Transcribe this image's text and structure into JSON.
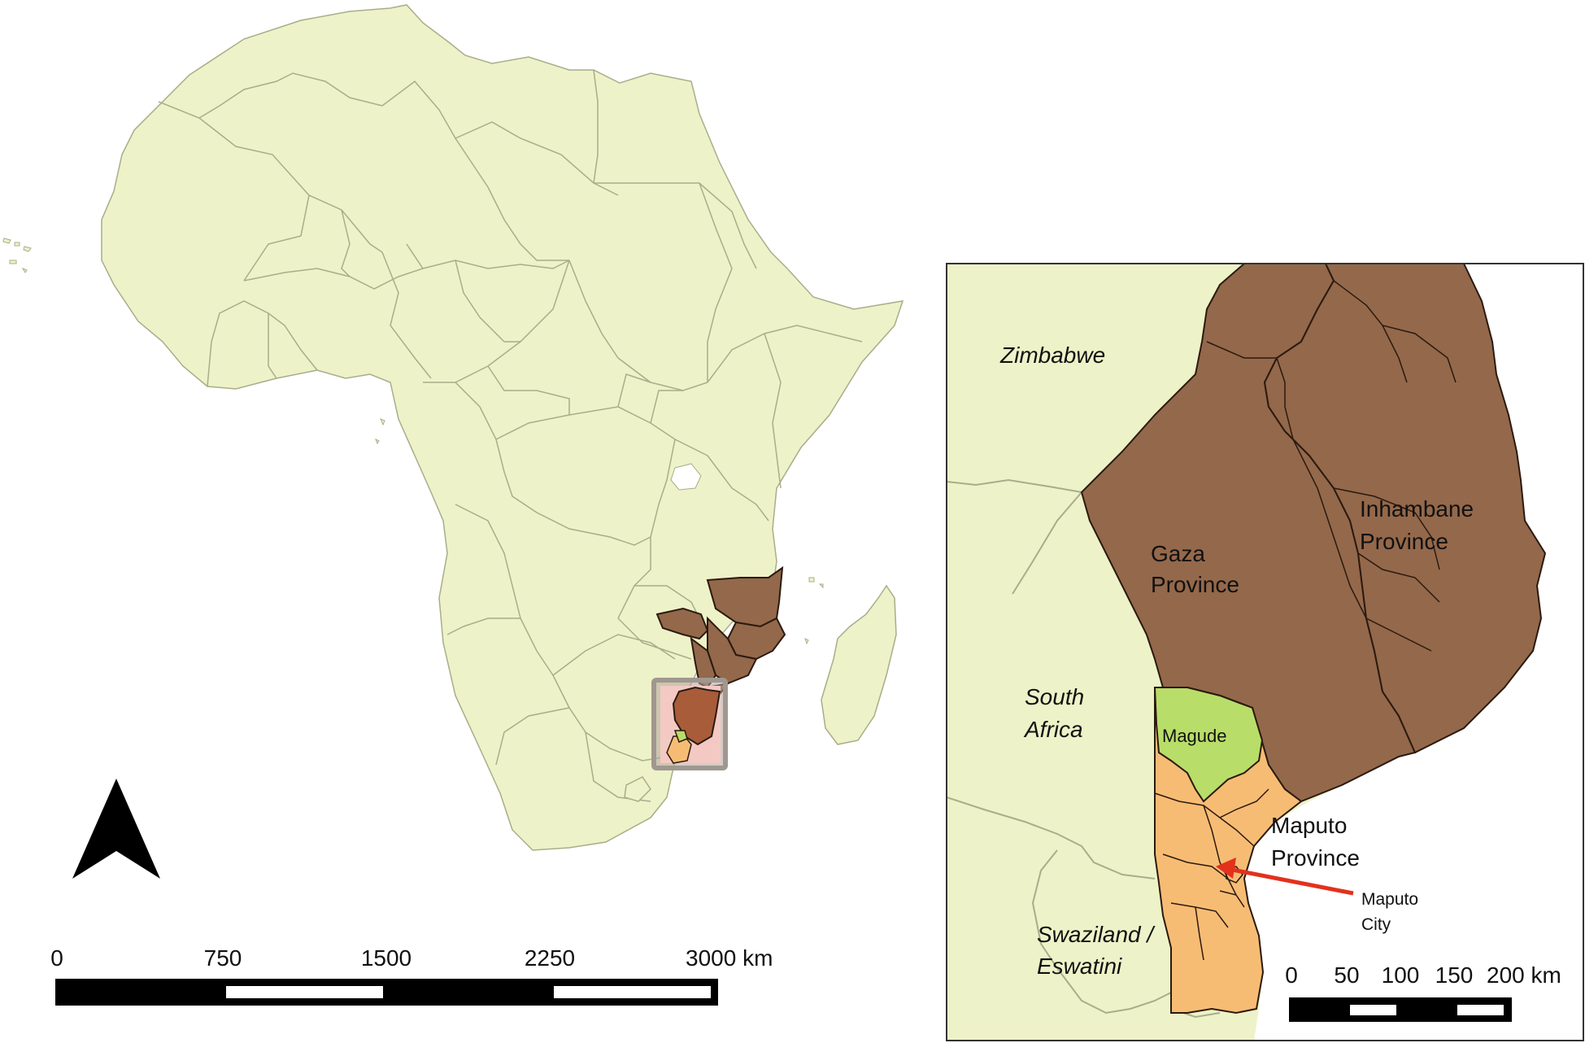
{
  "colors": {
    "land": "#eef2c8",
    "land_border": "#a9ad8a",
    "province": "#94684a",
    "province_border": "#2a1a10",
    "maputo_province": "#f7bc74",
    "magude": "#b9dd69",
    "study_box_outer": "#b0a39a",
    "study_box_inner": "#f4c9c4",
    "arrow": "#e3311c",
    "scale_bar": "#000000",
    "inset_frame": "#333333"
  },
  "icons": {
    "north_arrow": "north-arrow-icon"
  },
  "main_map": {
    "scale_bar": {
      "ticks": [
        "0",
        "750",
        "1500",
        "2250",
        "3000 km"
      ]
    }
  },
  "inset_map": {
    "labels": {
      "zimbabwe": "Zimbabwe",
      "south_africa_line1": "South",
      "south_africa_line2": "Africa",
      "swaziland_line1": "Swaziland /",
      "swaziland_line2": "Eswatini",
      "gaza_line1": "Gaza",
      "gaza_line2": "Province",
      "inhambane_line1": "Inhambane",
      "inhambane_line2": "Province",
      "magude": "Magude",
      "maputo_province_line1": "Maputo",
      "maputo_province_line2": "Province",
      "maputo_city_line1": "Maputo",
      "maputo_city_line2": "City"
    },
    "scale_bar": {
      "ticks": [
        "0",
        "50",
        "100",
        "150",
        "200 km"
      ]
    }
  }
}
